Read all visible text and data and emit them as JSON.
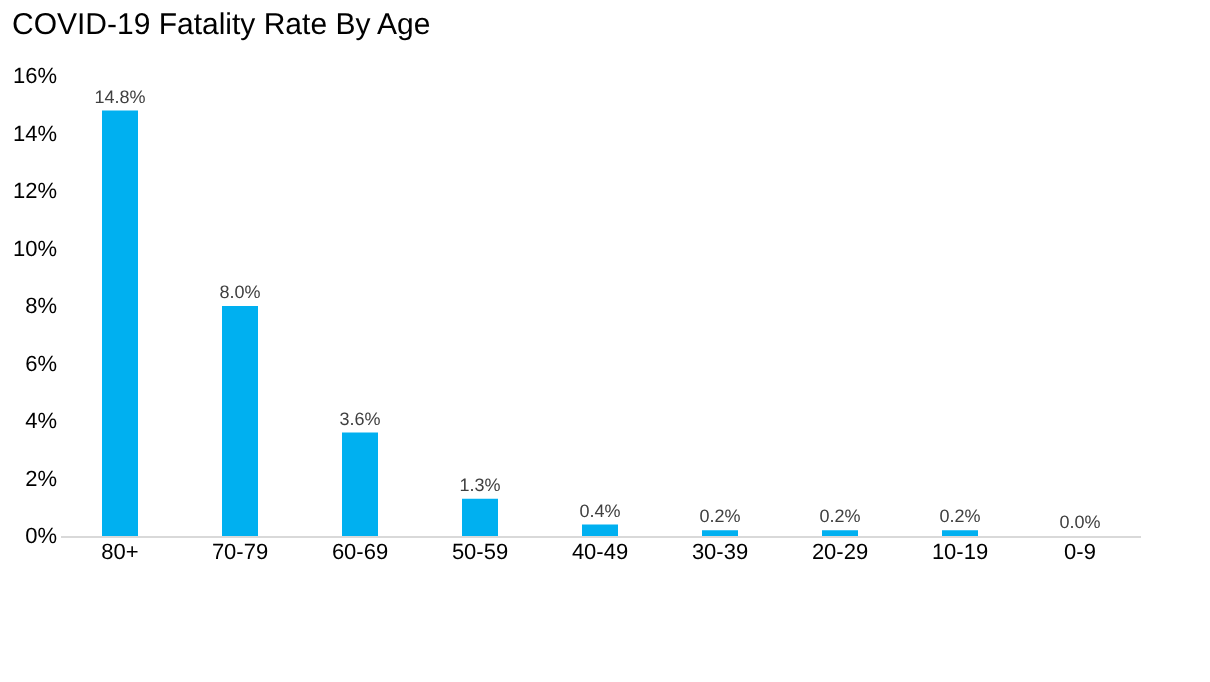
{
  "chart_data": {
    "type": "bar",
    "title": "COVID-19 Fatality Rate By Age",
    "categories": [
      "80+",
      "70-79",
      "60-69",
      "50-59",
      "40-49",
      "30-39",
      "20-29",
      "10-19",
      "0-9"
    ],
    "values": [
      14.8,
      8.0,
      3.6,
      1.3,
      0.4,
      0.2,
      0.2,
      0.2,
      0.0
    ],
    "value_labels": [
      "14.8%",
      "8.0%",
      "3.6%",
      "1.3%",
      "0.4%",
      "0.2%",
      "0.2%",
      "0.2%",
      "0.0%"
    ],
    "color": "#00b0f0",
    "ylim": [
      0,
      16
    ],
    "yticks": [
      {
        "value": 0,
        "label": "0%"
      },
      {
        "value": 2,
        "label": "2%"
      },
      {
        "value": 4,
        "label": "4%"
      },
      {
        "value": 6,
        "label": "6%"
      },
      {
        "value": 8,
        "label": "8%"
      },
      {
        "value": 10,
        "label": "10%"
      },
      {
        "value": 12,
        "label": "12%"
      },
      {
        "value": 14,
        "label": "14%"
      },
      {
        "value": 16,
        "label": "16%"
      }
    ],
    "grid": false
  }
}
